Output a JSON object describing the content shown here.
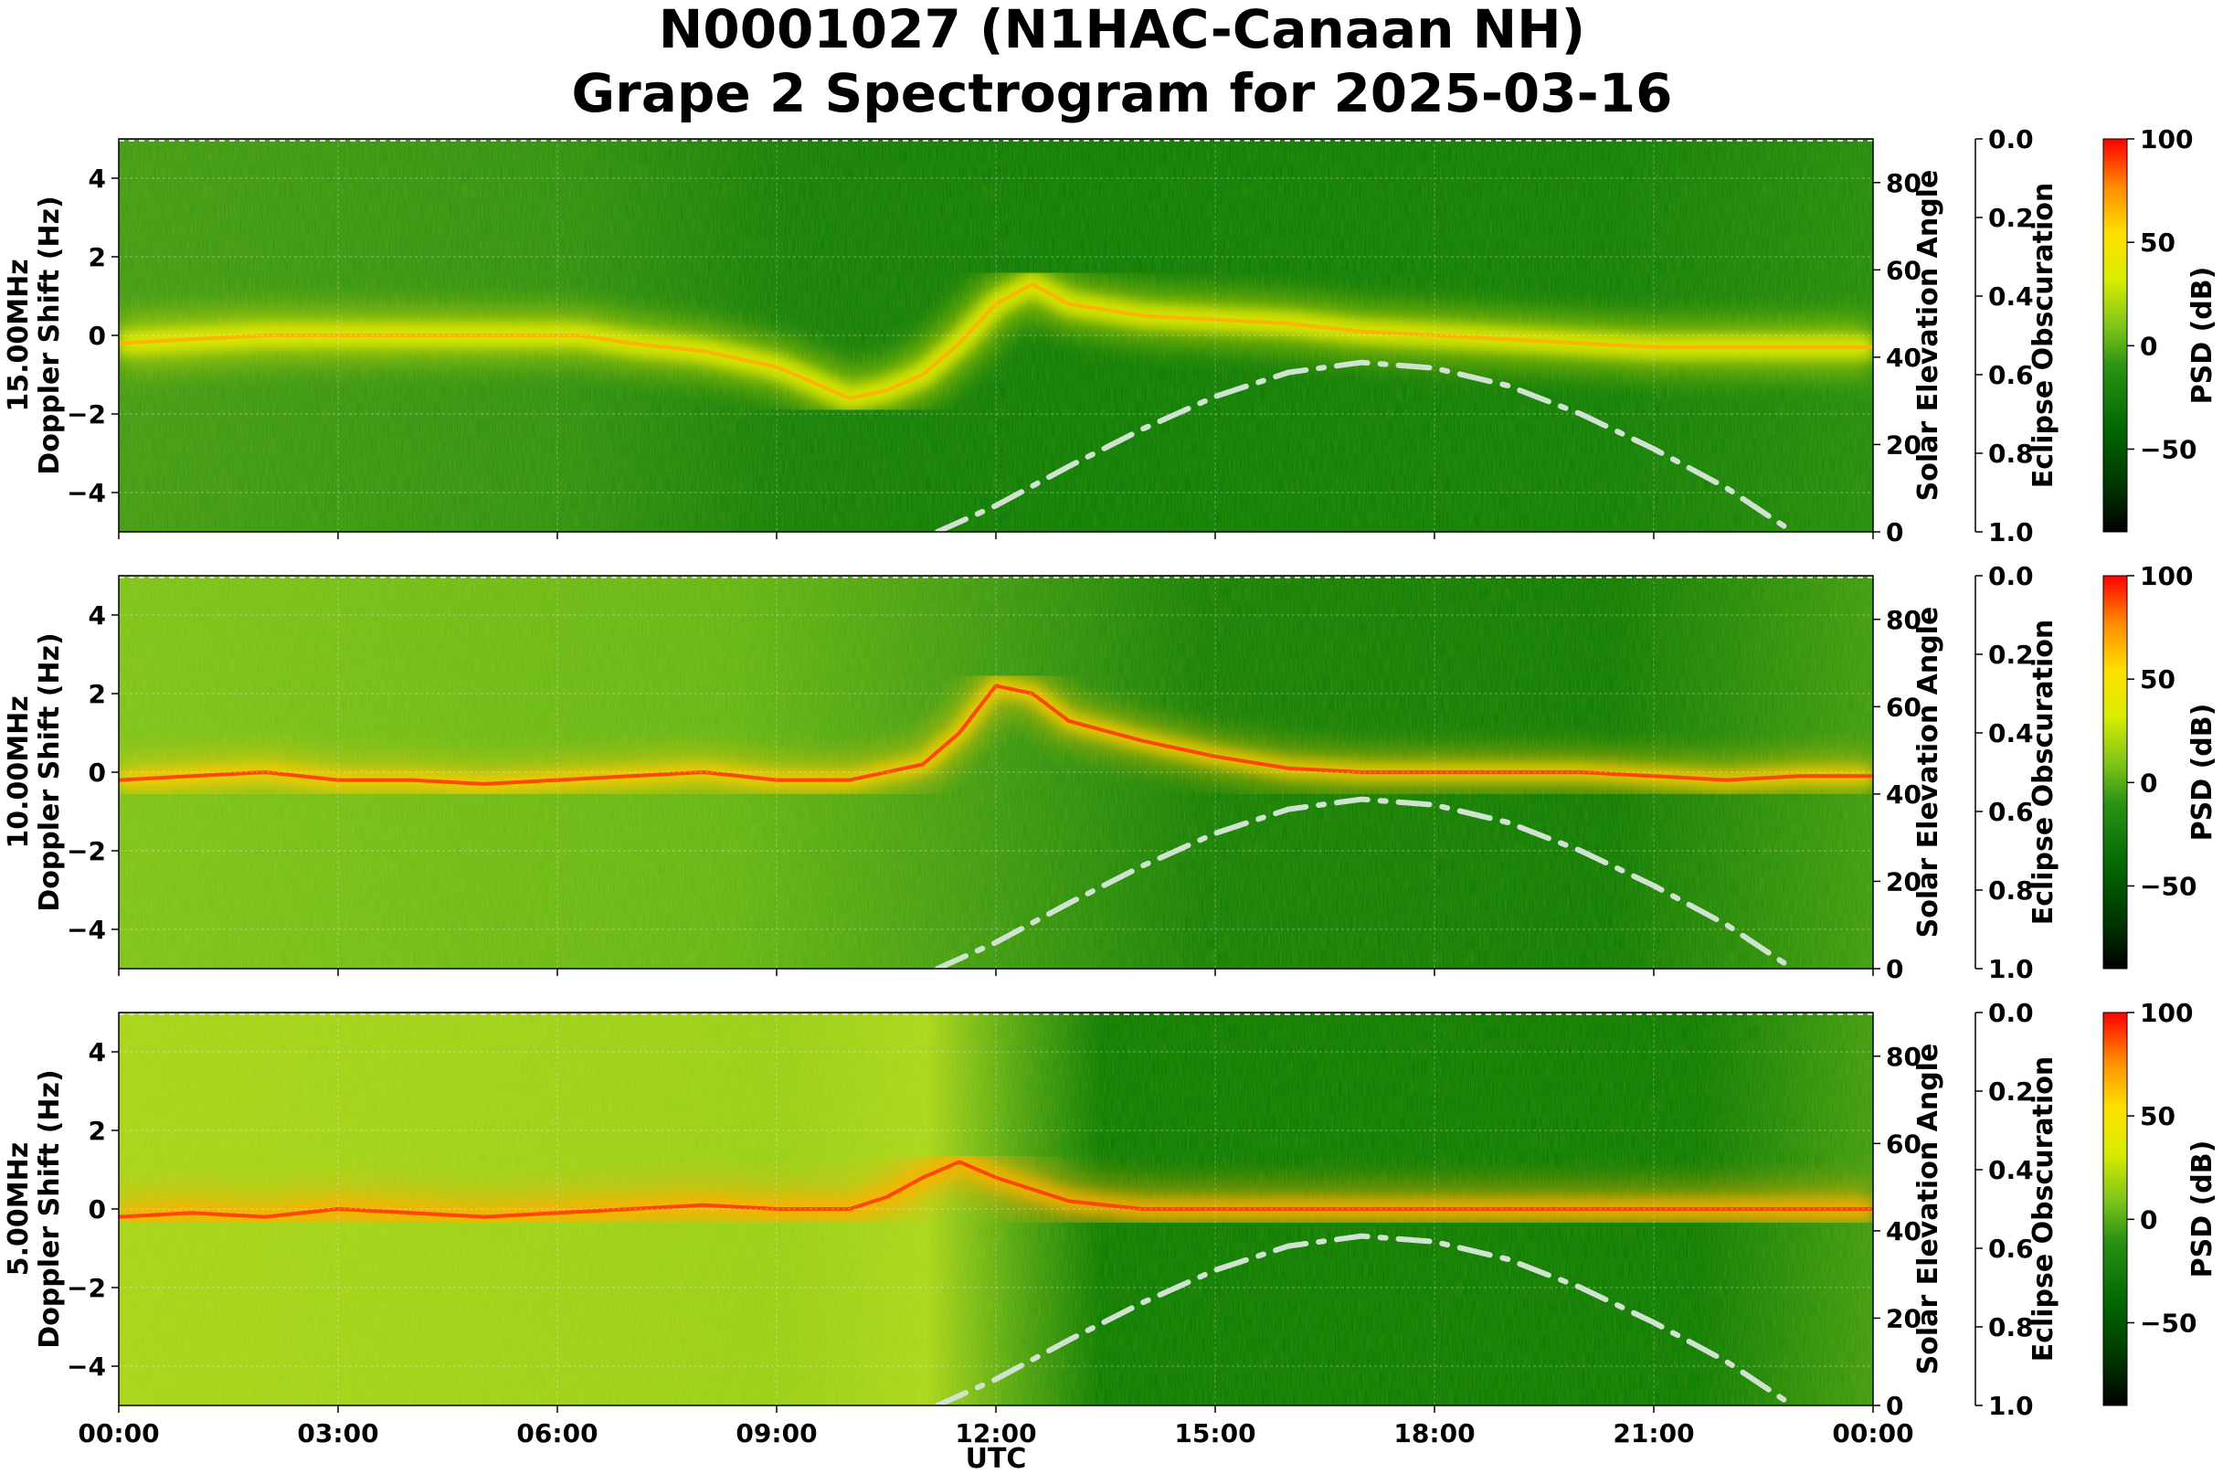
{
  "title_line1": "N0001027 (N1HAC-Canaan NH)",
  "title_line2": "Grape 2 Spectrogram for 2025-03-16",
  "xlabel": "UTC",
  "x_ticks": [
    "00:00",
    "03:00",
    "06:00",
    "09:00",
    "12:00",
    "15:00",
    "18:00",
    "21:00",
    "00:00"
  ],
  "chart_data": {
    "type": "heatmap",
    "x_range_hours": [
      0,
      24
    ],
    "panels": [
      {
        "ylabel": "15.00MHz\nDoppler Shift (Hz)",
        "ylim": [
          -5,
          5
        ],
        "y_ticks": [
          4,
          2,
          0,
          -2,
          -4
        ],
        "doppler_trace": [
          [
            0,
            -0.2
          ],
          [
            1,
            -0.1
          ],
          [
            2,
            0.0
          ],
          [
            3,
            0.0
          ],
          [
            4,
            0.0
          ],
          [
            5,
            0.0
          ],
          [
            6,
            0.0
          ],
          [
            6.3,
            0.0
          ],
          [
            7,
            -0.2
          ],
          [
            8,
            -0.4
          ],
          [
            9,
            -0.8
          ],
          [
            9.5,
            -1.2
          ],
          [
            10,
            -1.6
          ],
          [
            10.5,
            -1.4
          ],
          [
            11,
            -1.0
          ],
          [
            11.5,
            -0.2
          ],
          [
            12,
            0.8
          ],
          [
            12.5,
            1.3
          ],
          [
            13,
            0.8
          ],
          [
            14,
            0.5
          ],
          [
            15,
            0.4
          ],
          [
            16,
            0.3
          ],
          [
            17,
            0.1
          ],
          [
            18,
            0.0
          ],
          [
            19,
            -0.1
          ],
          [
            20,
            -0.2
          ],
          [
            21,
            -0.3
          ],
          [
            22,
            -0.3
          ],
          [
            23,
            -0.3
          ],
          [
            24,
            -0.3
          ]
        ],
        "solar_elevation_ylabel": "Solar Elevation Angle",
        "eclipse_ylabel": "Eclipse Obscuration",
        "colorbar_label": "PSD (dB)"
      },
      {
        "ylabel": "10.00MHz\nDoppler Shift (Hz)",
        "ylim": [
          -5,
          5
        ],
        "y_ticks": [
          4,
          2,
          0,
          -2,
          -4
        ],
        "doppler_trace": [
          [
            0,
            -0.2
          ],
          [
            1,
            -0.1
          ],
          [
            2,
            0.0
          ],
          [
            3,
            -0.2
          ],
          [
            4,
            -0.2
          ],
          [
            5,
            -0.3
          ],
          [
            6,
            -0.2
          ],
          [
            7,
            -0.1
          ],
          [
            8,
            0.0
          ],
          [
            9,
            -0.2
          ],
          [
            10,
            -0.2
          ],
          [
            11,
            0.2
          ],
          [
            11.5,
            1.0
          ],
          [
            12,
            2.2
          ],
          [
            12.5,
            2.0
          ],
          [
            13,
            1.3
          ],
          [
            14,
            0.8
          ],
          [
            15,
            0.4
          ],
          [
            16,
            0.1
          ],
          [
            17,
            0.0
          ],
          [
            18,
            0.0
          ],
          [
            19,
            0.0
          ],
          [
            20,
            0.0
          ],
          [
            21,
            -0.1
          ],
          [
            22,
            -0.2
          ],
          [
            23,
            -0.1
          ],
          [
            24,
            -0.1
          ]
        ],
        "solar_elevation_ylabel": "Solar Elevation Angle",
        "eclipse_ylabel": "Eclipse Obscuration",
        "colorbar_label": "PSD (dB)"
      },
      {
        "ylabel": "5.00MHz\nDoppler Shift (Hz)",
        "ylim": [
          -5,
          5
        ],
        "y_ticks": [
          4,
          2,
          0,
          -2,
          -4
        ],
        "doppler_trace": [
          [
            0,
            -0.2
          ],
          [
            1,
            -0.1
          ],
          [
            2,
            -0.2
          ],
          [
            3,
            0.0
          ],
          [
            4,
            -0.1
          ],
          [
            5,
            -0.2
          ],
          [
            6,
            -0.1
          ],
          [
            7,
            0.0
          ],
          [
            8,
            0.1
          ],
          [
            9,
            0.0
          ],
          [
            10,
            0.0
          ],
          [
            10.5,
            0.3
          ],
          [
            11,
            0.8
          ],
          [
            11.5,
            1.2
          ],
          [
            12,
            0.8
          ],
          [
            12.5,
            0.5
          ],
          [
            13,
            0.2
          ],
          [
            14,
            0.0
          ],
          [
            15,
            0.0
          ],
          [
            16,
            0.0
          ],
          [
            17,
            0.0
          ],
          [
            18,
            0.0
          ],
          [
            19,
            0.0
          ],
          [
            20,
            0.0
          ],
          [
            21,
            0.0
          ],
          [
            22,
            0.0
          ],
          [
            23,
            0.0
          ],
          [
            24,
            0.0
          ]
        ],
        "solar_elevation_ylabel": "Solar Elevation Angle",
        "eclipse_ylabel": "Eclipse Obscuration",
        "colorbar_label": "PSD (dB)"
      }
    ],
    "solar_elevation": {
      "ylim": [
        0,
        90
      ],
      "ticks": [
        80,
        60,
        40,
        20,
        0
      ],
      "curve": [
        [
          11.2,
          0
        ],
        [
          12,
          6
        ],
        [
          13,
          15
        ],
        [
          14,
          23.5
        ],
        [
          15,
          31
        ],
        [
          16,
          36.5
        ],
        [
          17,
          38.8
        ],
        [
          18,
          37.5
        ],
        [
          19,
          33.5
        ],
        [
          20,
          27
        ],
        [
          21,
          19
        ],
        [
          22,
          10
        ],
        [
          22.9,
          0
        ]
      ],
      "color": "#d0e2d0"
    },
    "eclipse_obscuration": {
      "ylim": [
        1.0,
        0.0
      ],
      "ticks": [
        "0.0",
        "0.2",
        "0.4",
        "0.6",
        "0.8",
        "1.0"
      ]
    },
    "colorbar": {
      "range_db": [
        -90,
        100
      ],
      "ticks": [
        100,
        50,
        0,
        -50
      ],
      "tick_labels": [
        "100",
        "50",
        "0",
        "−50"
      ],
      "colors": [
        "#000000",
        "#005000",
        "#007800",
        "#2e9a14",
        "#8ccf1a",
        "#e6f000",
        "#ffcc00",
        "#ff6a00",
        "#ff0000"
      ]
    }
  }
}
